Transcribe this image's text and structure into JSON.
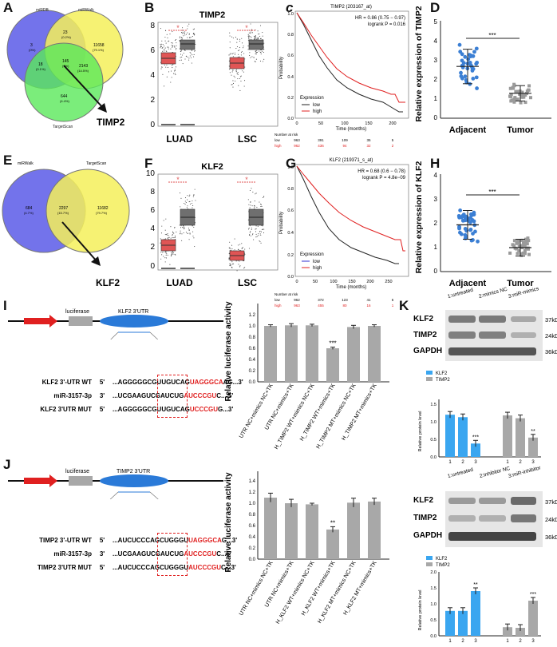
{
  "panels": {
    "A": {
      "letter": "A",
      "venn_sets": [
        "miRDB",
        "miRWalk",
        "TargetScan"
      ],
      "counts": [
        "3",
        "23",
        "11658",
        "18",
        "145",
        "2143",
        "644"
      ],
      "pcts": [
        "(0%)",
        "(0.2%)",
        "(79.1%)",
        "(0.1%)",
        "(1%)",
        "(14.5%)",
        "(4.4%)"
      ],
      "callout": "TIMP2"
    },
    "B": {
      "letter": "B",
      "title": "TIMP2",
      "yticks": [
        "0",
        "2",
        "4",
        "6",
        "8"
      ],
      "xlabels": [
        "LUAD",
        "LSC"
      ],
      "sig": [
        "*",
        "*"
      ]
    },
    "C": {
      "letter": "c",
      "title": "TIMP2 (203167_at)",
      "hr": "HR = 0.86 (0.75 − 0.97)",
      "logrank": "logrank P = 0.016",
      "ylabel": "Probability",
      "xlabel": "Time (months)",
      "xticks": [
        "0",
        "50",
        "100",
        "150",
        "200"
      ],
      "yticks": [
        "0.0",
        "0.2",
        "0.4",
        "0.6",
        "0.8",
        "1.0"
      ],
      "legend_title": "Expression",
      "legend": [
        "low",
        "high"
      ],
      "risk_title": "Number at risk",
      "risk_low": [
        "963",
        "391",
        "109",
        "35",
        "5"
      ],
      "risk_high": [
        "962",
        "436",
        "94",
        "32",
        "2"
      ]
    },
    "D": {
      "letter": "D",
      "ylabel": "Relative expression of TIMP2",
      "yticks": [
        "0",
        "1",
        "2",
        "3",
        "4",
        "5"
      ],
      "xlabels": [
        "Adjacent",
        "Tumor"
      ],
      "sig": "***"
    },
    "E": {
      "letter": "E",
      "venn_sets": [
        "miRWalk",
        "TargetScan"
      ],
      "counts": [
        "684",
        "2297",
        "11682"
      ],
      "pcts": [
        "(4.7%)",
        "(15.7%)",
        "(79.7%)"
      ],
      "callout": "KLF2"
    },
    "F": {
      "letter": "F",
      "title": "KLF2",
      "yticks": [
        "0",
        "2",
        "4",
        "6",
        "8",
        "10"
      ],
      "xlabels": [
        "LUAD",
        "LSC"
      ],
      "sig": [
        "*",
        "*"
      ]
    },
    "G": {
      "letter": "G",
      "title": "KLF2 (219371_s_at)",
      "hr": "HR = 0.68 (0.6 − 0.78)",
      "logrank": "logrank P = 4.8e−09",
      "ylabel": "Probability",
      "xlabel": "Time (months)",
      "xticks": [
        "0",
        "50",
        "100",
        "150",
        "200",
        "250"
      ],
      "yticks": [
        "0.0",
        "0.2",
        "0.4",
        "0.6",
        "0.8",
        "1.0"
      ],
      "legend_title": "Expression",
      "legend": [
        "low",
        "high"
      ],
      "risk_title": "Number at risk",
      "risk_low": [
        "962",
        "372",
        "123",
        "41",
        "6"
      ],
      "risk_high": [
        "963",
        "455",
        "80",
        "16",
        "1"
      ]
    },
    "H": {
      "letter": "H",
      "ylabel": "Relative expression of KLF2",
      "yticks": [
        "0",
        "1",
        "2",
        "3",
        "4"
      ],
      "xlabels": [
        "Adjacent",
        "Tumor"
      ],
      "sig": "***"
    },
    "I": {
      "letter": "I",
      "luc": "luciferase",
      "utr": "KLF2 3'UTR",
      "rows": [
        {
          "label": "KLF2 3'-UTR WT",
          "p": "5'",
          "seq": "...AGGGGGCGUUGUCAG",
          "red": "UAGGGCA",
          "tail": "AG...3'"
        },
        {
          "label": "miR-3157-3p",
          "p": "3'",
          "seq": "...UCGAAGUCGAUCUG",
          "red": "AUCCCGU",
          "tail": "C... 5'"
        },
        {
          "label": "KLF2 3'UTR MUT",
          "p": "5'",
          "seq": "...AGGGGGCGUUGUCAG",
          "red": "UCCCGU",
          "tail": "G...3'"
        }
      ],
      "ylabel": "Relative luciferase activity",
      "yticks": [
        "0.0",
        "0.2",
        "0.4",
        "0.6",
        "0.8",
        "1.0",
        "1.2"
      ],
      "categories": [
        "UTR NC+mimics NC+TK",
        "UTR NC+mimics+TK",
        "H_TIMP2 WT+mimics NC+TK",
        "H_TIMP2 WT+mimics+TK",
        "H_TIMP2 MT+mimics NC+TK",
        "H_TIMP2 MT+mimics+TK"
      ],
      "values": [
        1.0,
        1.01,
        1.01,
        0.6,
        0.98,
        1.0
      ],
      "errors": [
        0.02,
        0.03,
        0.02,
        0.02,
        0.03,
        0.02
      ],
      "sig": [
        "",
        "",
        "",
        "***",
        "",
        ""
      ]
    },
    "J": {
      "letter": "J",
      "luc": "luciferase",
      "utr": "TIMP2 3'UTR",
      "rows": [
        {
          "label": "TIMP2 3'-UTR WT",
          "p": "5'",
          "seq": "...AUCUCCCAGCUGGGU",
          "red": "UAGGGCA",
          "tail": "G...3'"
        },
        {
          "label": "miR-3157-3p",
          "p": "3'",
          "seq": "...UCGAAGUCGAUCUG",
          "red": "AUCCCGU",
          "tail": "C...5'"
        },
        {
          "label": "TIMP2 3'UTR MUT",
          "p": "5'",
          "seq": "...AUCUCCCAGCUGGGU",
          "red": "AUCCCGU",
          "tail": "C...3'"
        }
      ],
      "ylabel": "Relative luciferase activity",
      "yticks": [
        "0.0",
        "0.2",
        "0.4",
        "0.6",
        "0.8",
        "1.0",
        "1.2",
        "1.4"
      ],
      "categories": [
        "UTR NC+mimics NC+TK",
        "UTR NC+mimics+TK",
        "H_KLF2 WT+mimics NC+TK",
        "H_KLF2 WT+mimics+TK",
        "H_KLF2 MT+mimics NC+TK",
        "H_KLF2 MT+mimics+TK"
      ],
      "values": [
        1.1,
        1.0,
        0.98,
        0.53,
        1.01,
        1.03
      ],
      "errors": [
        0.08,
        0.07,
        0.02,
        0.05,
        0.08,
        0.06
      ],
      "sig": [
        "",
        "",
        "",
        "**",
        "",
        ""
      ]
    },
    "K": {
      "letter": "K",
      "wb1": {
        "lanes": [
          "1:untreated",
          "2:mimics NC",
          "3:miR-mimics"
        ],
        "proteins": [
          "KLF2",
          "TIMP2",
          "GAPDH"
        ],
        "sizes": [
          "37kDa",
          "24kDa",
          "36kDa"
        ]
      },
      "bar1": {
        "legend": [
          "KLF2",
          "TIMP2"
        ],
        "ylabel": "Relative protein level",
        "yticks": [
          "0.0",
          "0.5",
          "1.0",
          "1.5"
        ],
        "xticks": [
          "1",
          "2",
          "3",
          "1",
          "2",
          "3"
        ],
        "klf2": [
          1.2,
          1.13,
          0.38
        ],
        "timp2": [
          1.18,
          1.1,
          0.55
        ],
        "sig_klf2": "***",
        "sig_timp2": "**"
      },
      "wb2": {
        "lanes": [
          "1:untreated",
          "2:inhibitor NC",
          "3:miR-inhibitor"
        ],
        "proteins": [
          "KLF2",
          "TIMP2",
          "GAPDH"
        ],
        "sizes": [
          "37kDa",
          "24kDa",
          "36kDa"
        ]
      },
      "bar2": {
        "legend": [
          "KLF2",
          "TIMP2"
        ],
        "ylabel": "Relative protein level",
        "yticks": [
          "0.0",
          "0.5",
          "1.0",
          "1.5",
          "2.0"
        ],
        "xticks": [
          "1",
          "2",
          "3",
          "1",
          "2",
          "3"
        ],
        "klf2": [
          0.78,
          0.78,
          1.4
        ],
        "timp2": [
          0.27,
          0.25,
          1.1
        ],
        "sig_klf2": "**",
        "sig_timp2": "***"
      }
    }
  },
  "colors": {
    "tumor": "#e05555",
    "normal": "#6f6f6f",
    "adjacent": "#3b7fd4",
    "tumor_dots": "#9a9a9a",
    "klf2_bar": "#3aa6f0",
    "timp2_bar": "#a8a8a8",
    "km_low": "#222222",
    "km_high": "#e02020",
    "km_low_blue": "#3030d0",
    "venn_blue": "#5a5ae8",
    "venn_yellow": "#f4f05a",
    "venn_green": "#5ae85a",
    "arrow_red": "#e01010",
    "utr_blue": "#2a7ad8"
  }
}
